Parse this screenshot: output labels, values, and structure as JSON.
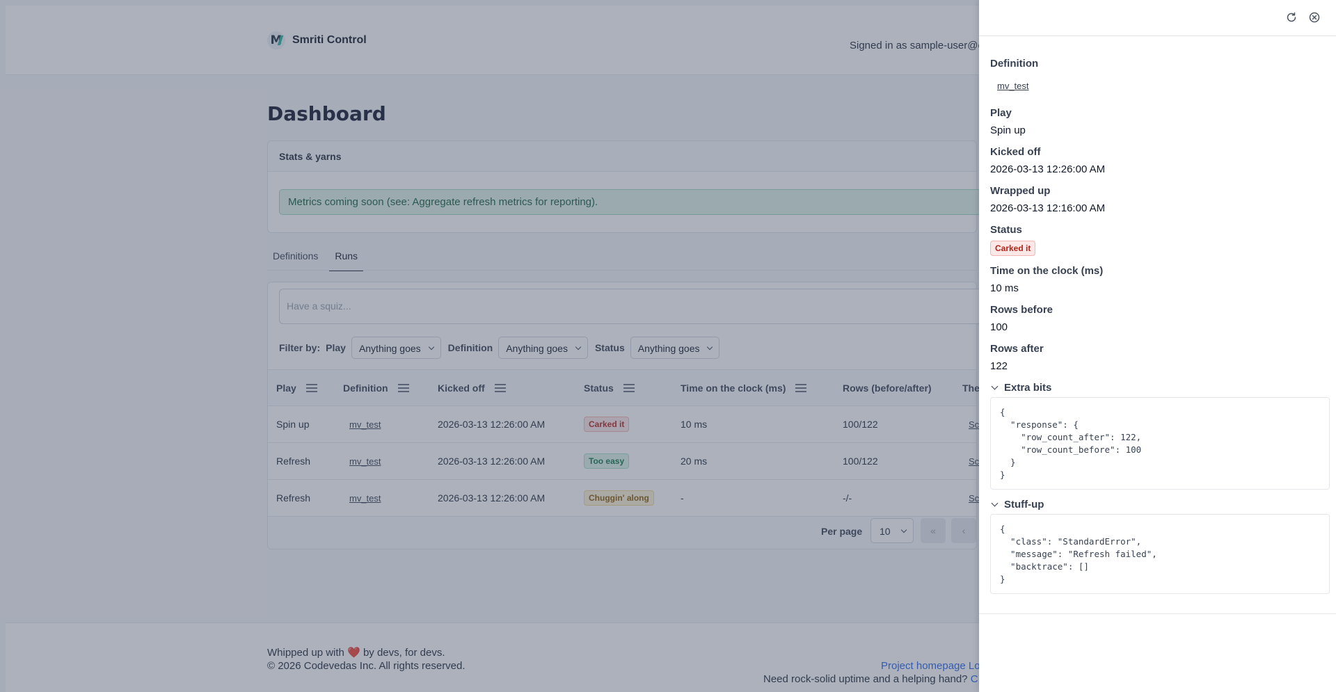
{
  "header": {
    "brand": "Smriti Control",
    "signed_in": "Signed in as sample-user@e"
  },
  "page": {
    "title": "Dashboard"
  },
  "stats": {
    "title": "Stats & yarns",
    "alert": "Metrics coming soon (see: Aggregate refresh metrics for reporting)."
  },
  "tabs": [
    {
      "label": "Definitions",
      "active": false
    },
    {
      "label": "Runs",
      "active": true
    }
  ],
  "search": {
    "placeholder": "Have a squiz..."
  },
  "filters": {
    "label": "Filter by:",
    "play": {
      "label": "Play",
      "value": "Anything goes"
    },
    "definition": {
      "label": "Definition",
      "value": "Anything goes"
    },
    "status": {
      "label": "Status",
      "value": "Anything goes"
    }
  },
  "table": {
    "columns": [
      "Play",
      "Definition",
      "Kicked off",
      "Status",
      "Time on the clock (ms)",
      "Rows (before/after)",
      "The"
    ],
    "rows": [
      {
        "play": "Spin up",
        "definition": "mv_test",
        "kicked_off": "2026-03-13 12:26:00 AM",
        "status": "Carked it",
        "time": "10 ms",
        "rows": "100/122",
        "extra": "Sc"
      },
      {
        "play": "Refresh",
        "definition": "mv_test",
        "kicked_off": "2026-03-13 12:26:00 AM",
        "status": "Too easy",
        "time": "20 ms",
        "rows": "100/122",
        "extra": "Sc"
      },
      {
        "play": "Refresh",
        "definition": "mv_test",
        "kicked_off": "2026-03-13 12:26:00 AM",
        "status": "Chuggin' along",
        "time": "-",
        "rows": "-/-",
        "extra": "Sc"
      }
    ],
    "per_page_label": "Per page",
    "per_page_value": "10",
    "first_page": "«",
    "prev_page": "‹"
  },
  "footer": {
    "made_with_pre": "Whipped up with",
    "heart": "❤️",
    "made_with_post": "by devs, for devs.",
    "copyright": "© 2026 Codevedas Inc. All rights reserved.",
    "project_link": "Project homepage Lo",
    "uptime_text": "Need rock-solid uptime and a helping hand?",
    "uptime_link": "C"
  },
  "drawer": {
    "definition_label": "Definition",
    "definition_value": "mv_test",
    "play_label": "Play",
    "play_value": "Spin up",
    "kicked_off_label": "Kicked off",
    "kicked_off_value": "2026-03-13 12:26:00 AM",
    "wrapped_up_label": "Wrapped up",
    "wrapped_up_value": "2026-03-13 12:16:00 AM",
    "status_label": "Status",
    "status_value": "Carked it",
    "time_label": "Time on the clock (ms)",
    "time_value": "10 ms",
    "rows_before_label": "Rows before",
    "rows_before_value": "100",
    "rows_after_label": "Rows after",
    "rows_after_value": "122",
    "extra_label": "Extra bits",
    "extra_code": "{\n  \"response\": {\n    \"row_count_after\": 122,\n    \"row_count_before\": 100\n  }\n}",
    "stuffup_label": "Stuff-up",
    "stuffup_code": "{\n  \"class\": \"StandardError\",\n  \"message\": \"Refresh failed\",\n  \"backtrace\": []\n}"
  },
  "colors": {
    "overlay": "#47526b",
    "error_badge": "#b42318",
    "success_badge": "#13764a",
    "warning_badge": "#8a5a00",
    "link": "#2563eb"
  }
}
